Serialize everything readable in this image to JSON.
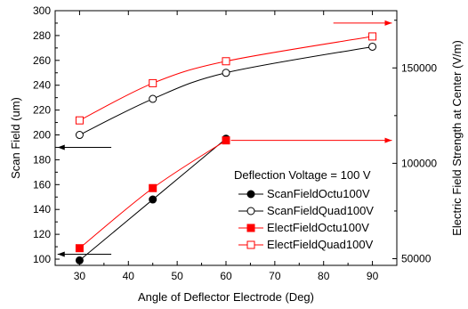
{
  "chart_data": {
    "type": "line",
    "xlabel": "Angle of Deflector Electrode (Deg)",
    "ylabel": "Scan Field (um)",
    "y2label": "Electric Field Strength at Center (V/m)",
    "xlim": [
      25,
      95
    ],
    "ylim": [
      95,
      300
    ],
    "y2lim": [
      46500,
      180000
    ],
    "x_ticks": [
      30,
      40,
      50,
      60,
      70,
      80,
      90
    ],
    "y_ticks": [
      100,
      120,
      140,
      160,
      180,
      200,
      220,
      240,
      260,
      280,
      300
    ],
    "y2_ticks": [
      50000,
      100000,
      150000
    ],
    "grid": false,
    "legend": {
      "title": "Deflection Voltage = 100 V",
      "position": "center-right"
    },
    "series": [
      {
        "name": "ScanFieldOctu100V",
        "axis": "left",
        "color": "#000000",
        "marker": "filled-circle",
        "x": [
          30,
          45,
          60
        ],
        "y": [
          99,
          148,
          197
        ]
      },
      {
        "name": "ScanFieldQuad100V",
        "axis": "left",
        "color": "#000000",
        "marker": "open-circle",
        "x": [
          30,
          45,
          60,
          90
        ],
        "y": [
          200,
          229,
          250,
          271
        ]
      },
      {
        "name": "ElectFieldOctu100V",
        "axis": "right",
        "color": "#ff0000",
        "marker": "filled-square",
        "x": [
          30,
          45,
          60
        ],
        "y": [
          55500,
          87000,
          112000
        ]
      },
      {
        "name": "ElectFieldQuad100V",
        "axis": "right",
        "color": "#ff0000",
        "marker": "open-square",
        "x": [
          30,
          45,
          60,
          90
        ],
        "y": [
          122500,
          142000,
          153500,
          166500
        ]
      }
    ],
    "annotations": [
      {
        "type": "arrow",
        "direction": "left",
        "color": "#000000",
        "points_to": "left-axis",
        "series": "ScanFieldQuad100V"
      },
      {
        "type": "arrow",
        "direction": "left",
        "color": "#000000",
        "points_to": "left-axis",
        "series": "ScanFieldOctu100V"
      },
      {
        "type": "arrow",
        "direction": "right",
        "color": "#ff0000",
        "points_to": "right-axis",
        "series": "ElectFieldQuad100V"
      },
      {
        "type": "arrow",
        "direction": "right",
        "color": "#ff0000",
        "points_to": "right-axis",
        "series": "ElectFieldOctu100V"
      }
    ]
  }
}
